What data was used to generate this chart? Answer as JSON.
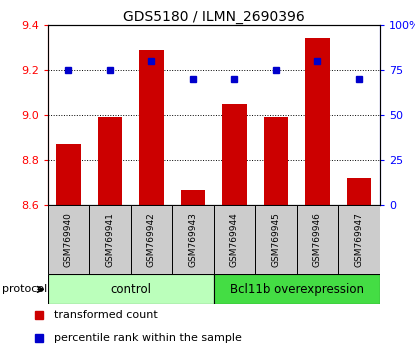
{
  "title": "GDS5180 / ILMN_2690396",
  "samples": [
    "GSM769940",
    "GSM769941",
    "GSM769942",
    "GSM769943",
    "GSM769944",
    "GSM769945",
    "GSM769946",
    "GSM769947"
  ],
  "transformed_counts": [
    8.87,
    8.99,
    9.29,
    8.67,
    9.05,
    8.99,
    9.34,
    8.72
  ],
  "percentile_ranks": [
    75,
    75,
    80,
    70,
    70,
    75,
    80,
    70
  ],
  "ylim_left": [
    8.6,
    9.4
  ],
  "ylim_right": [
    0,
    100
  ],
  "yticks_left": [
    8.6,
    8.8,
    9.0,
    9.2,
    9.4
  ],
  "yticks_right": [
    0,
    25,
    50,
    75,
    100
  ],
  "ytick_labels_right": [
    "0",
    "25",
    "50",
    "75",
    "100%"
  ],
  "bar_color": "#cc0000",
  "dot_color": "#0000cc",
  "control_color": "#bbffbb",
  "overexpression_color": "#44dd44",
  "control_label": "control",
  "overexpression_label": "Bcl11b overexpression",
  "protocol_label": "protocol",
  "legend_bar_label": "transformed count",
  "legend_dot_label": "percentile rank within the sample",
  "sample_box_color": "#cccccc",
  "fig_width": 4.15,
  "fig_height": 3.54,
  "dpi": 100
}
